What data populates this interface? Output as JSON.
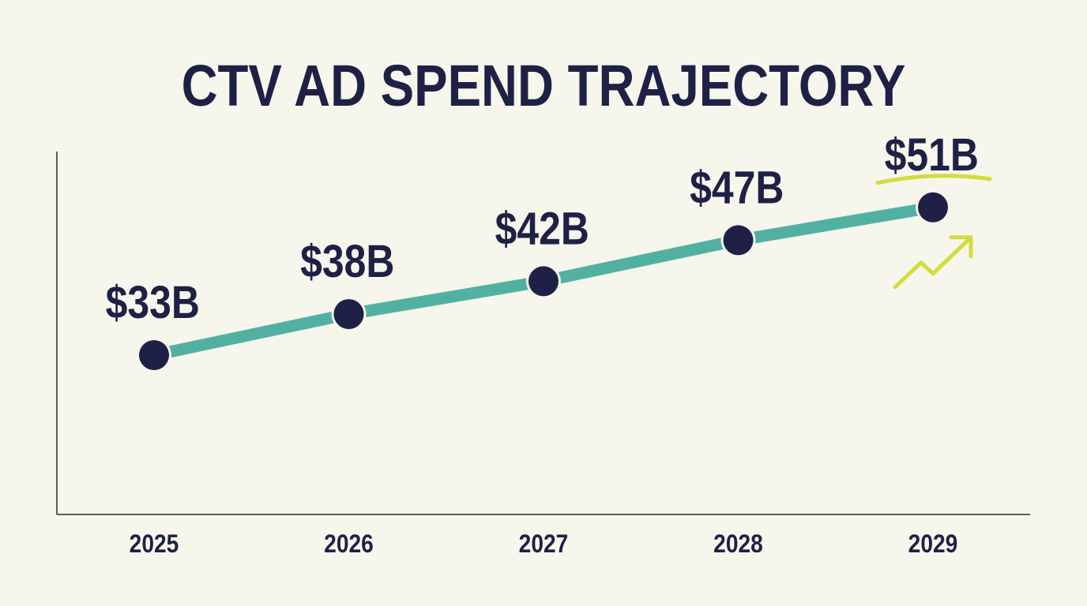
{
  "chart_data": {
    "type": "line",
    "title": "CTV AD SPEND TRAJECTORY",
    "xlabel": "",
    "ylabel": "",
    "categories": [
      "2025",
      "2026",
      "2027",
      "2028",
      "2029"
    ],
    "values": [
      33,
      38,
      42,
      47,
      51
    ],
    "data_labels": [
      "$33B",
      "$38B",
      "$42B",
      "$47B",
      "$51B"
    ],
    "ylim": [
      13.6,
      57.8
    ],
    "grid": false,
    "highlight": {
      "index": 4,
      "decoration": "underline and up-trend arrow"
    },
    "colors": {
      "background": "#f6f6ec",
      "line": "#52b0a3",
      "points": "#1e2145",
      "text": "#1e2145",
      "accent": "#d4dc3c",
      "axis": "#2a2a2a"
    }
  }
}
